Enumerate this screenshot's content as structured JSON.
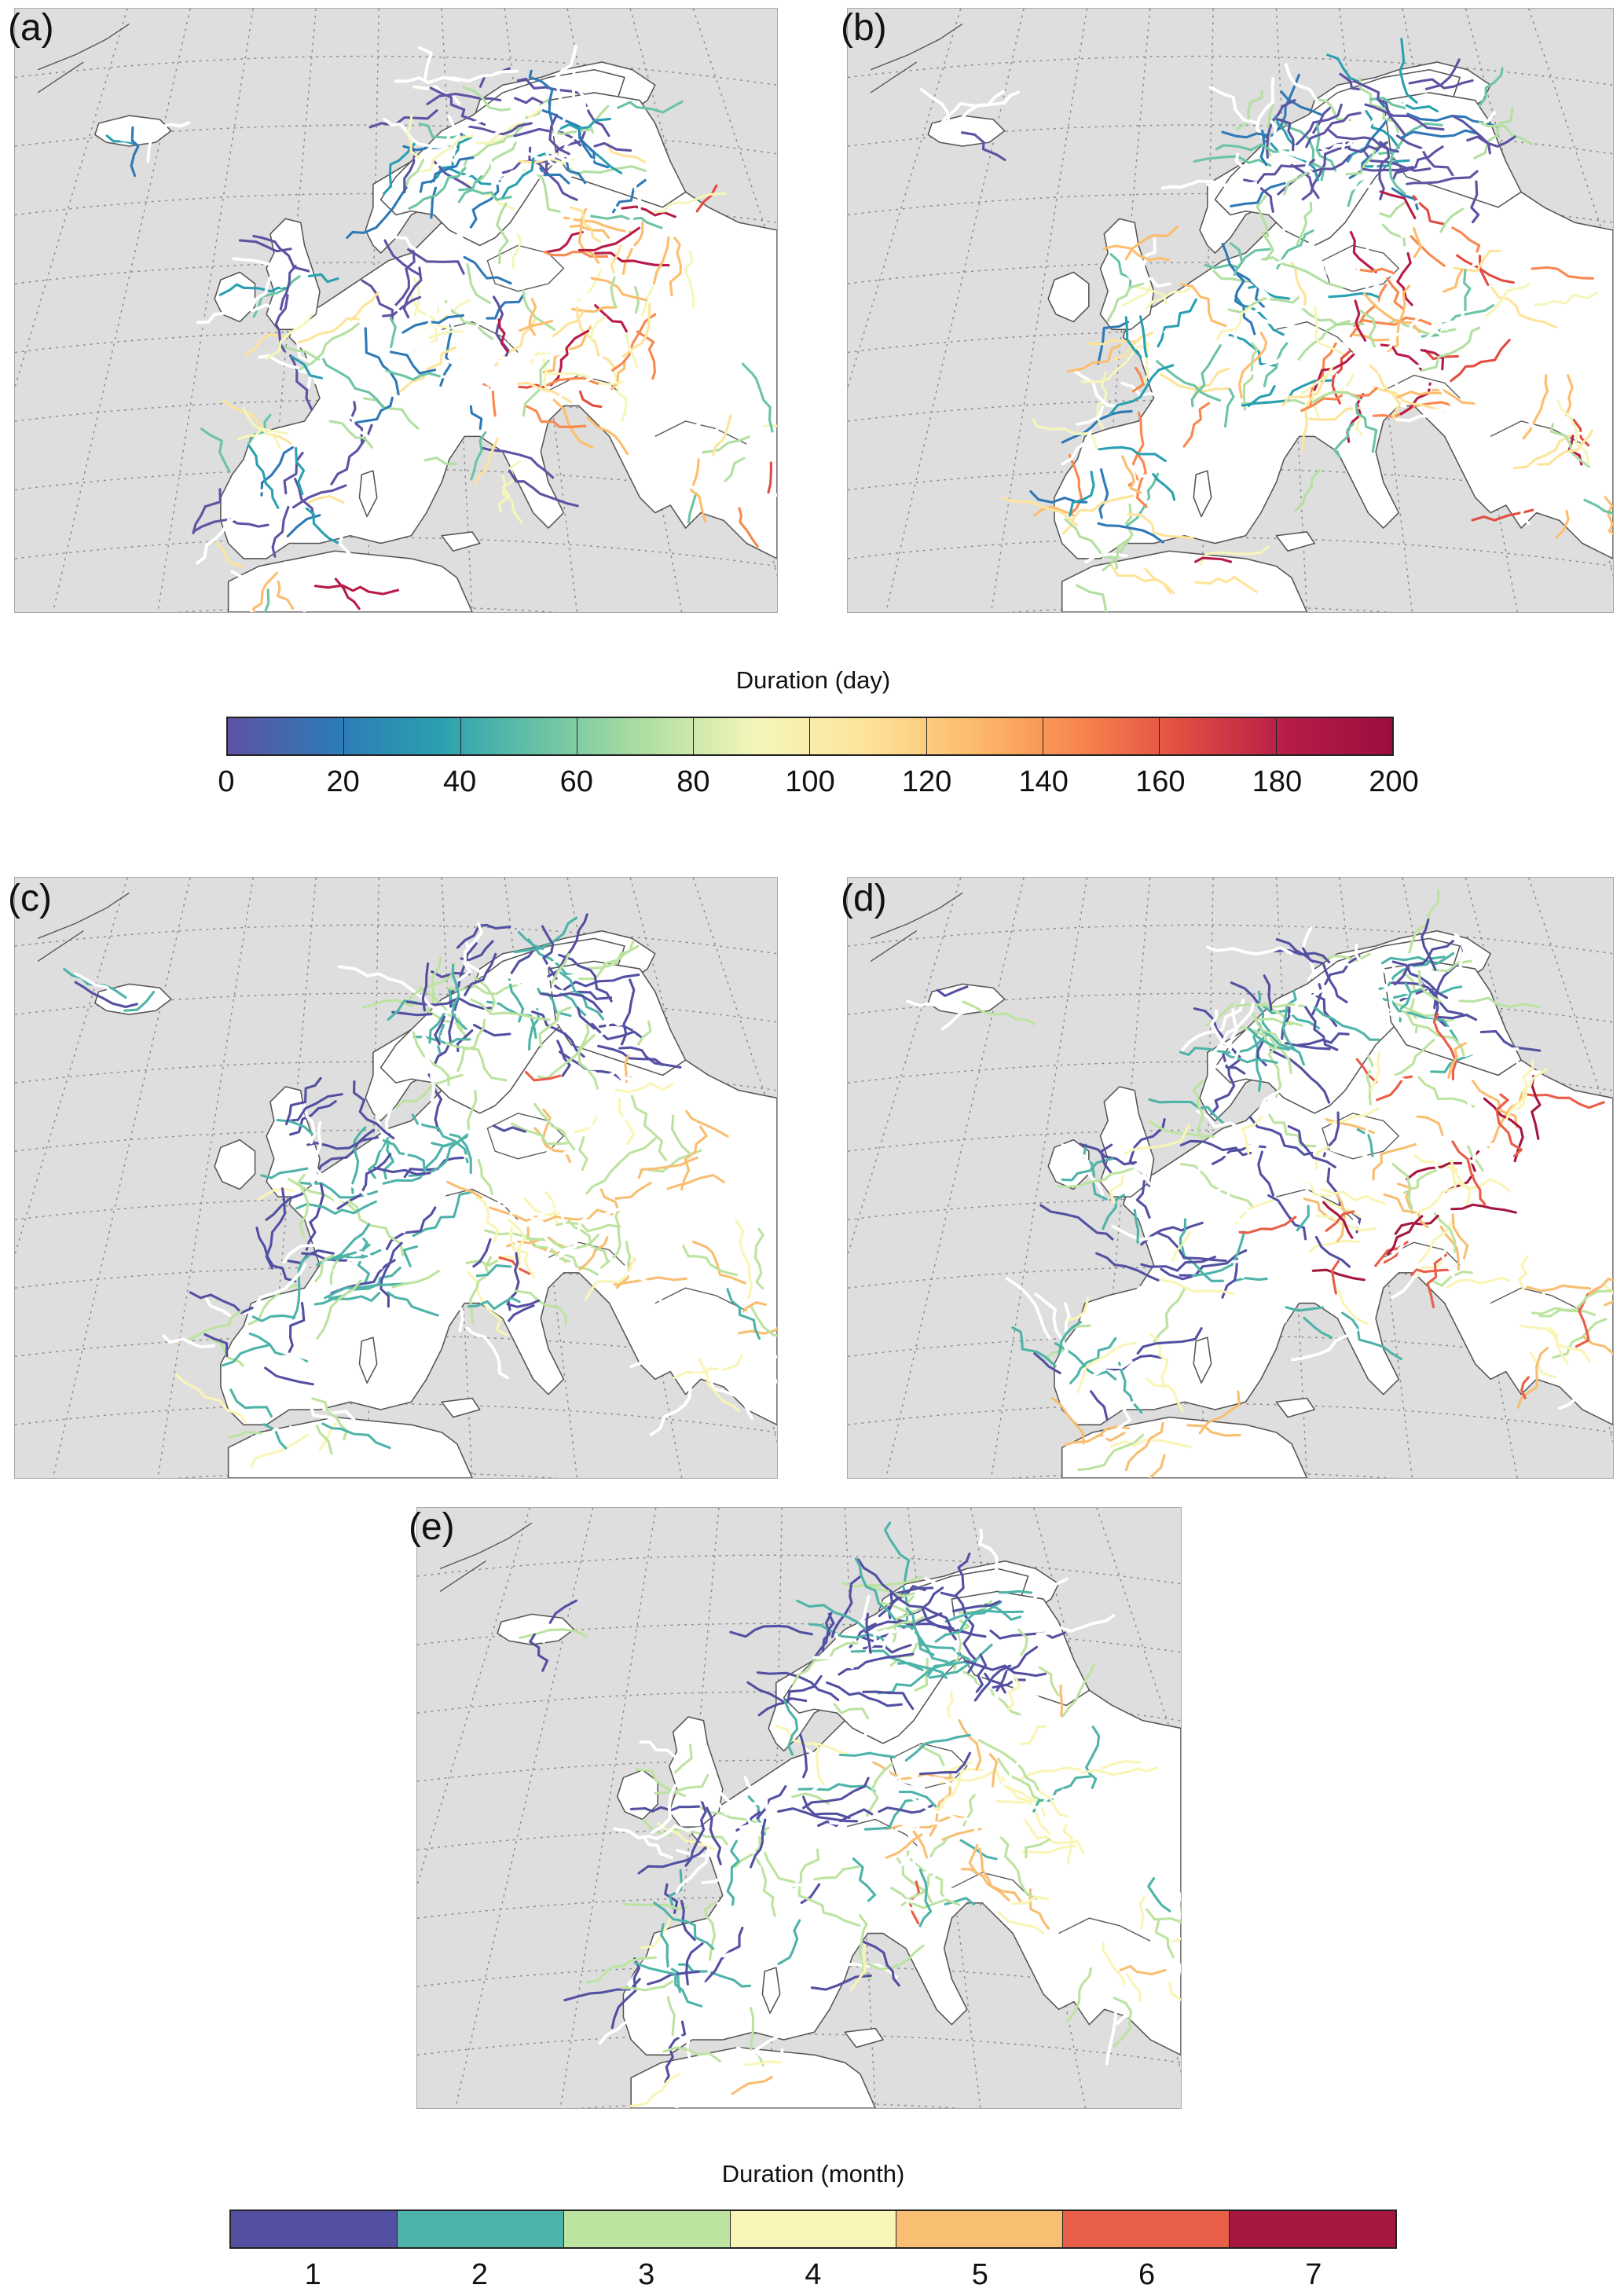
{
  "panels": [
    {
      "id": "a",
      "label": "(a)"
    },
    {
      "id": "b",
      "label": "(b)"
    },
    {
      "id": "c",
      "label": "(c)"
    },
    {
      "id": "d",
      "label": "(d)"
    },
    {
      "id": "e",
      "label": "(e)"
    }
  ],
  "colorbar_day": {
    "title": "Duration (day)",
    "ticks": [
      "0",
      "20",
      "40",
      "60",
      "80",
      "100",
      "120",
      "140",
      "160",
      "180",
      "200"
    ],
    "colors": [
      "#5c53a3",
      "#2f79b6",
      "#2aa0b1",
      "#6cc4a4",
      "#b3e0a2",
      "#f6f6bb",
      "#fde49a",
      "#fdbd6e",
      "#f8884f",
      "#e24d42",
      "#b71c48",
      "#9c0d3e"
    ]
  },
  "colorbar_month": {
    "title": "Duration (month)",
    "ticks": [
      "1",
      "2",
      "3",
      "4",
      "5",
      "6",
      "7"
    ],
    "colors": [
      "#5350a2",
      "#4eb3a9",
      "#bde3a0",
      "#f9f5b6",
      "#f8be71",
      "#e95e48",
      "#a6173f"
    ]
  },
  "map_style": {
    "ocean": "#dedede",
    "land": "#ffffff",
    "coast": "#555555",
    "graticule": "#8a8a8a"
  }
}
